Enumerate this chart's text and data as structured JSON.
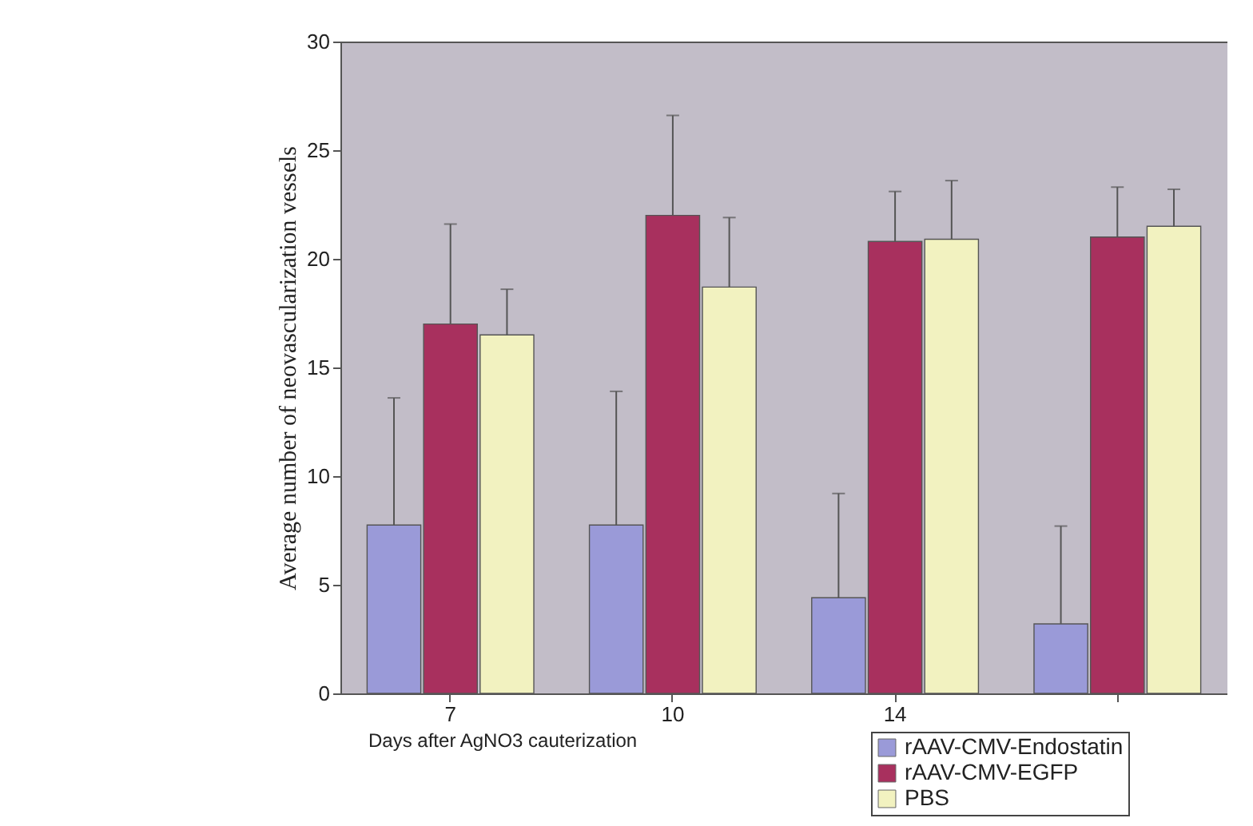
{
  "chart_data": {
    "type": "bar",
    "xlabel": "Days after AgNO3 cauterization",
    "ylabel": "Average number of neovascularization vessels",
    "categories": [
      "7",
      "10",
      "14",
      null
    ],
    "series": [
      {
        "name": "rAAV-CMV-Endostatin",
        "color": "#9a9ad8",
        "values": [
          7.75,
          7.75,
          4.4,
          3.2
        ],
        "errors": [
          [
            7.75,
            13.6
          ],
          [
            7.75,
            13.9
          ],
          [
            4.4,
            9.2
          ],
          [
            3.2,
            7.7
          ]
        ]
      },
      {
        "name": "rAAV-CMV-EGFP",
        "color": "#a8305e",
        "values": [
          17.0,
          22.0,
          20.8,
          21.0
        ],
        "errors": [
          [
            17.0,
            21.6
          ],
          [
            22.0,
            26.6
          ],
          [
            20.8,
            23.1
          ],
          [
            21.0,
            23.3
          ]
        ]
      },
      {
        "name": "PBS",
        "color": "#f2f2c0",
        "values": [
          16.5,
          18.7,
          20.9,
          21.5
        ],
        "errors": [
          [
            16.5,
            18.6
          ],
          [
            18.7,
            21.9
          ],
          [
            20.9,
            23.6
          ],
          [
            21.5,
            23.2
          ]
        ]
      }
    ],
    "ylim": [
      0,
      30
    ],
    "yticks": [
      0,
      5,
      10,
      15,
      20,
      25,
      30
    ],
    "grid": false,
    "legend": "bottom right"
  }
}
